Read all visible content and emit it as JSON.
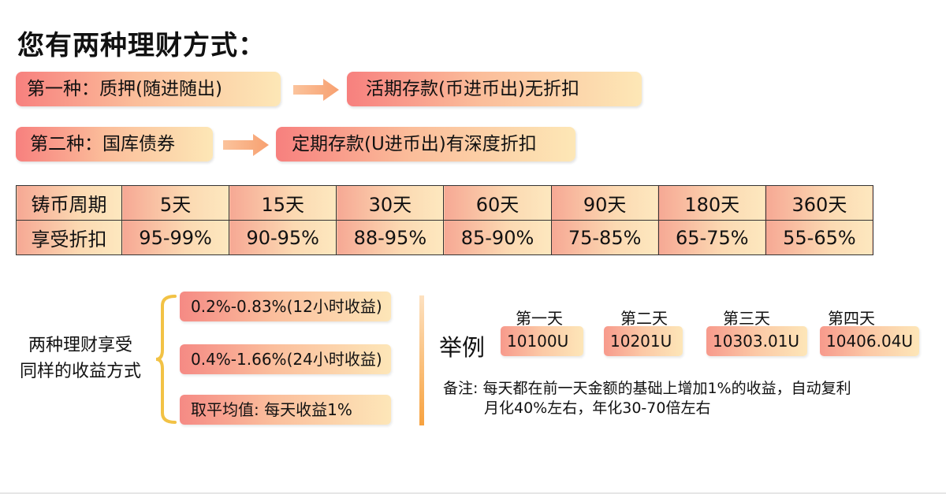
{
  "title": "您有两种理财方式：",
  "methods": [
    {
      "left": "第一种：质押(随进随出)",
      "right": "活期存款(币进币出)无折扣"
    },
    {
      "left": "第二种：国库债券",
      "right": "定期存款(U进币出)有深度折扣"
    }
  ],
  "table": {
    "row1_header": "铸币周期",
    "row2_header": "享受折扣",
    "periods": [
      "5天",
      "15天",
      "30天",
      "60天",
      "90天",
      "180天",
      "360天"
    ],
    "discounts": [
      "95-99%",
      "90-95%",
      "88-95%",
      "85-90%",
      "75-85%",
      "65-75%",
      "55-65%"
    ]
  },
  "yield": {
    "label_line1": "两种理财享受",
    "label_line2": "同样的收益方式",
    "items": [
      "0.2%-0.83%(12小时收益)",
      "0.4%-1.66%(24小时收益)",
      "取平均值: 每天收益1%"
    ]
  },
  "example": {
    "label": "举例",
    "days": [
      {
        "title": "第一天",
        "value": "10100U"
      },
      {
        "title": "第二天",
        "value": "10201U"
      },
      {
        "title": "第三天",
        "value": "10303.01U"
      },
      {
        "title": "第四天",
        "value": "10406.04U"
      }
    ],
    "note_line1": "备注: 每天都在前一天金额的基础上增加1%的收益，自动复利",
    "note_line2": "月化40%左右，年化30-70倍左右"
  },
  "colors": {
    "pill_start": "#f7807e",
    "pill_end": "#fde7b6",
    "arrow": "#f9b081",
    "divider": "#f7a23f"
  }
}
